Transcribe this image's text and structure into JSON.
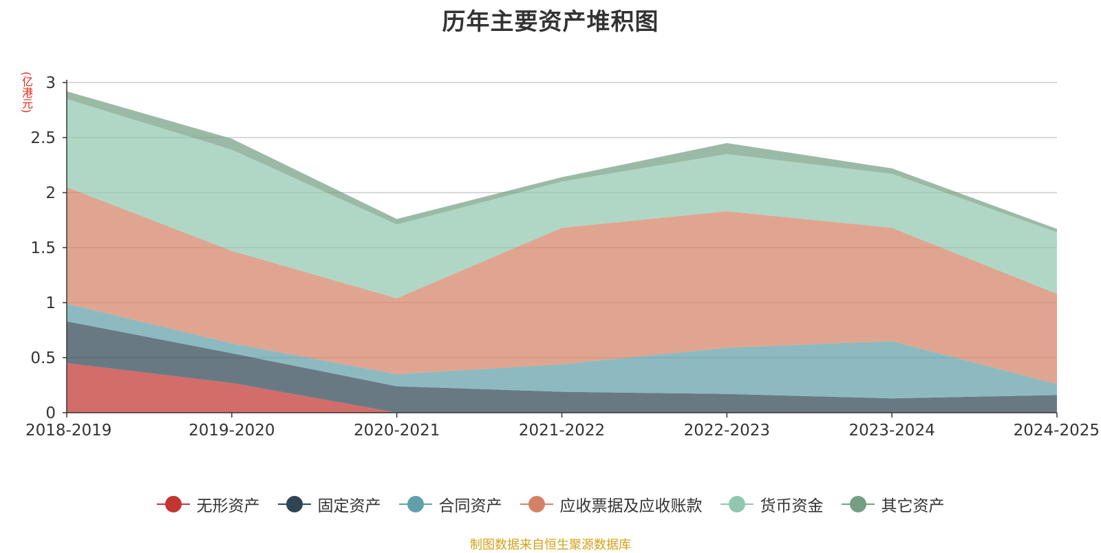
{
  "header": {
    "title": "历年主要资产堆积图",
    "unit": "(亿港元)"
  },
  "footer": {
    "source": "制图数据来自恒生聚源数据库"
  },
  "chart_data": {
    "type": "area",
    "stacked": true,
    "title": "历年主要资产堆积图",
    "ylabel": "(亿港元)",
    "ylim": [
      0,
      3
    ],
    "yticks": [
      "0",
      "0.5",
      "1",
      "1.5",
      "2",
      "2.5",
      "3"
    ],
    "grid": true,
    "legend_position": "bottom",
    "categories": [
      "2018-2019",
      "2019-2020",
      "2020-2021",
      "2021-2022",
      "2022-2023",
      "2023-2024",
      "2024-2025"
    ],
    "series": [
      {
        "name": "无形资产",
        "color": "#c23531",
        "values": [
          0.45,
          0.27,
          0.0,
          0.0,
          0.0,
          0.0,
          0.0
        ]
      },
      {
        "name": "固定资产",
        "color": "#2f4554",
        "values": [
          0.38,
          0.27,
          0.24,
          0.19,
          0.17,
          0.13,
          0.16
        ]
      },
      {
        "name": "合同资产",
        "color": "#61a0a8",
        "values": [
          0.16,
          0.09,
          0.11,
          0.25,
          0.42,
          0.52,
          0.1
        ]
      },
      {
        "name": "应收票据及应收账款",
        "color": "#d48265",
        "values": [
          1.06,
          0.84,
          0.69,
          1.24,
          1.24,
          1.03,
          0.82
        ]
      },
      {
        "name": "货币资金",
        "color": "#91c7ae",
        "values": [
          0.8,
          0.92,
          0.67,
          0.42,
          0.52,
          0.49,
          0.56
        ]
      },
      {
        "name": "其它资产",
        "color": "#749f83",
        "values": [
          0.07,
          0.1,
          0.05,
          0.04,
          0.1,
          0.05,
          0.03
        ]
      }
    ]
  }
}
